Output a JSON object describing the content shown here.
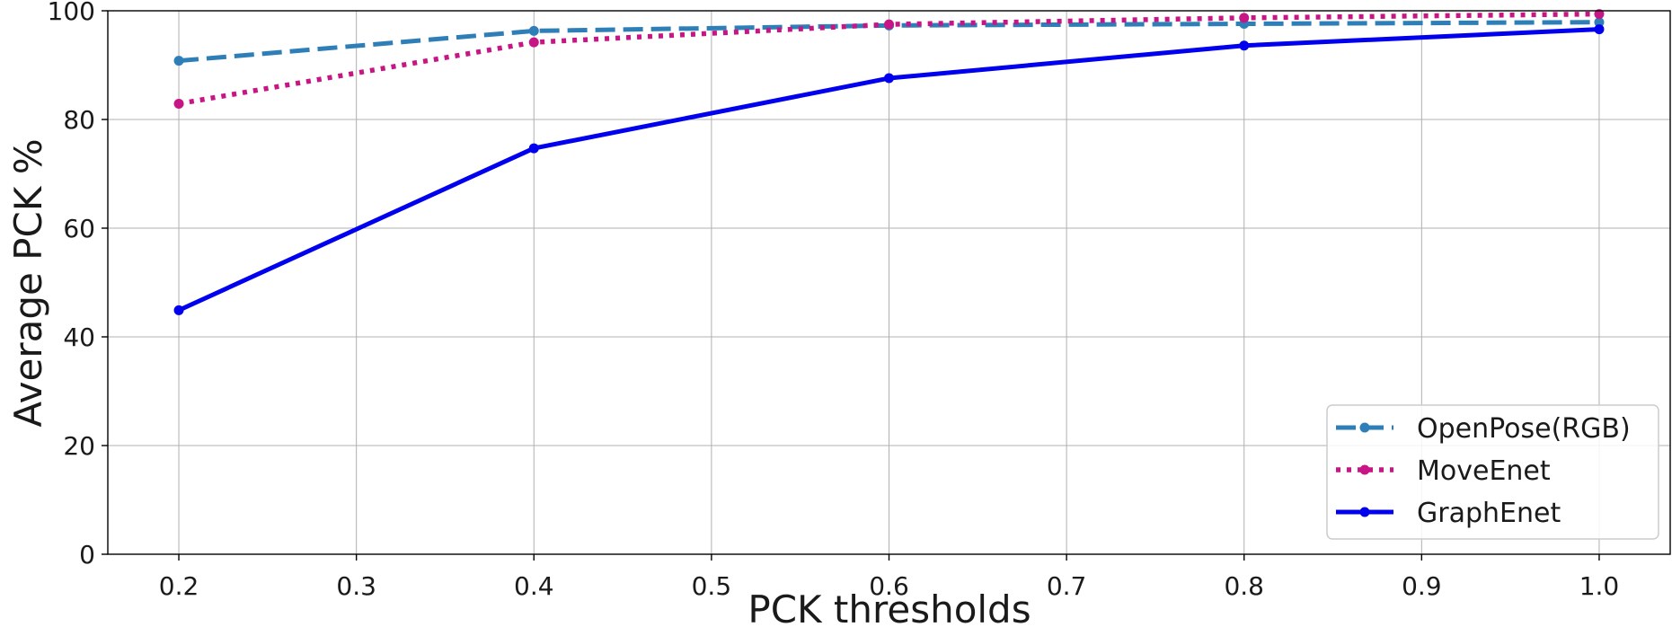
{
  "chart_data": {
    "type": "line",
    "xlabel": "PCK thresholds",
    "ylabel": "Average PCK %",
    "xlim": [
      0.16,
      1.04
    ],
    "ylim": [
      0,
      100
    ],
    "x_ticks": [
      "0.2",
      "0.3",
      "0.4",
      "0.5",
      "0.6",
      "0.7",
      "0.8",
      "0.9",
      "1.0"
    ],
    "y_ticks": [
      "0",
      "20",
      "40",
      "60",
      "80",
      "100"
    ],
    "grid": true,
    "legend_position": "lower-right",
    "x": [
      0.2,
      0.4,
      0.6,
      0.8,
      1.0
    ],
    "series": [
      {
        "name": "OpenPose(RGB)",
        "values": [
          90.8,
          96.3,
          97.3,
          97.6,
          97.9
        ],
        "color": "#2e7fb8",
        "line_style": "dashed"
      },
      {
        "name": "MoveEnet",
        "values": [
          82.9,
          94.2,
          97.5,
          98.7,
          99.4
        ],
        "color": "#c71585",
        "line_style": "dotted"
      },
      {
        "name": "GraphEnet",
        "values": [
          44.9,
          74.7,
          87.6,
          93.6,
          96.6
        ],
        "color": "#0000ee",
        "line_style": "solid"
      }
    ]
  }
}
